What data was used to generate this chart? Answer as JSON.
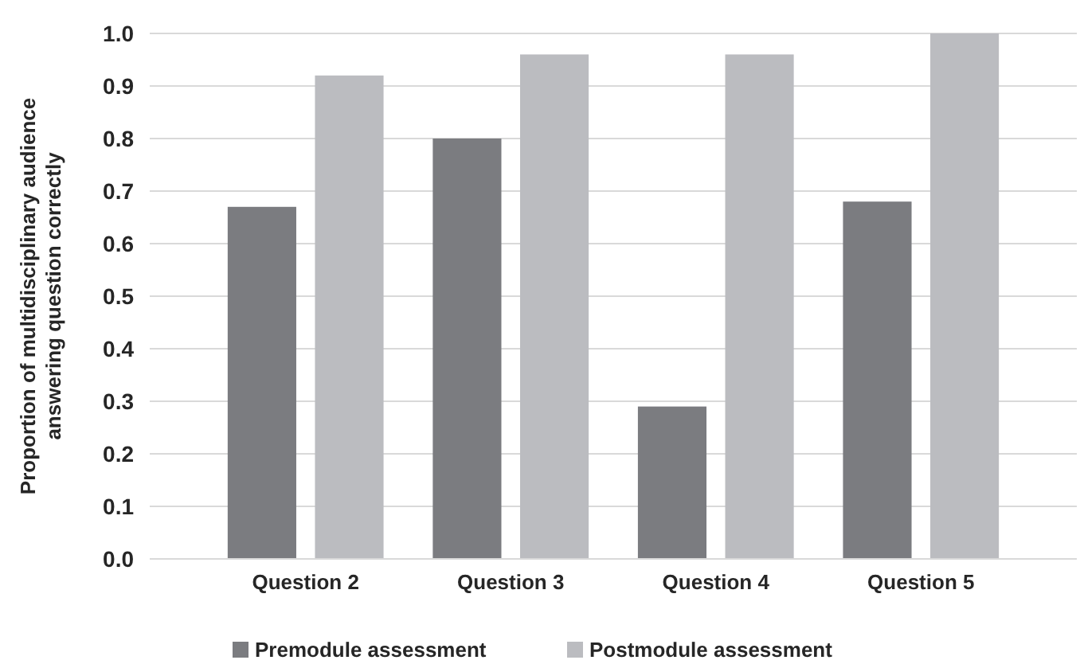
{
  "chart_data": {
    "type": "bar",
    "ylabel": "Proportion of multidisciplinary audience answering question correctly",
    "categories": [
      "Question 2",
      "Question 3",
      "Question 4",
      "Question 5"
    ],
    "series": [
      {
        "name": "Premodule assessment",
        "color": "#7b7c80",
        "values": [
          0.67,
          0.8,
          0.29,
          0.68
        ]
      },
      {
        "name": "Postmodule assessment",
        "color": "#bbbcc0",
        "values": [
          0.92,
          0.96,
          0.96,
          1.0
        ]
      }
    ],
    "ylim": [
      0,
      1
    ],
    "yticks": [
      {
        "value": 0,
        "label": "0.0"
      },
      {
        "value": 0.1,
        "label": "0.1"
      },
      {
        "value": 0.2,
        "label": "0.2"
      },
      {
        "value": 0.3,
        "label": "0.3"
      },
      {
        "value": 0.4,
        "label": "0.4"
      },
      {
        "value": 0.5,
        "label": "0.5"
      },
      {
        "value": 0.6,
        "label": "0.6"
      },
      {
        "value": 0.7,
        "label": "0.7"
      },
      {
        "value": 0.8,
        "label": "0.8"
      },
      {
        "value": 0.9,
        "label": "0.9"
      },
      {
        "value": 1,
        "label": "1.0"
      }
    ],
    "grid": "y",
    "legend": "bottom"
  }
}
